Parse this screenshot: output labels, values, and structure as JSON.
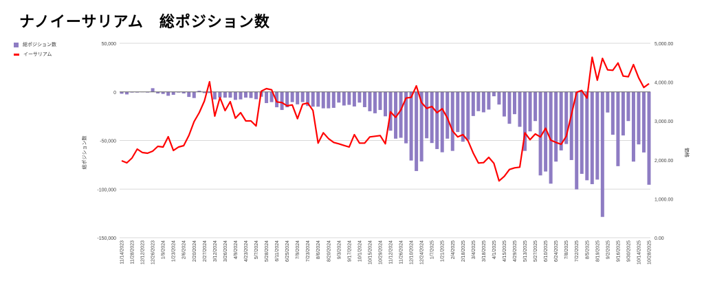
{
  "title": "ナノイーサリアム　総ポジション数",
  "chart_data": {
    "type": "bar+line",
    "title": "ナノイーサリアム　総ポジション数",
    "legend_position": "top-left",
    "legend": [
      "総ポジション数",
      "イーサリアム"
    ],
    "y_left_label": "総ポジション数",
    "y_right_label": "価格",
    "y_left_range": [
      -150000,
      50000
    ],
    "y_right_range": [
      0,
      5000
    ],
    "y_left_ticks": [
      "50,000",
      "0",
      "-50,000",
      "-100,000",
      "-150,000"
    ],
    "y_left_tick_values": [
      50000,
      0,
      -50000,
      -100000,
      -150000
    ],
    "y_right_ticks": [
      "5,000.00",
      "4,000.00",
      "3,000.00",
      "2,000.00",
      "1,000.00",
      "0.00"
    ],
    "y_right_tick_values": [
      5000,
      4000,
      3000,
      2000,
      1000,
      0
    ],
    "grid": true,
    "x_tick_labels": [
      "11/14/2023",
      "11/28/2023",
      "12/12/2023",
      "12/26/2023",
      "1/9/2024",
      "1/23/2024",
      "2/6/2024",
      "2/20/2024",
      "2/27/2024",
      "3/12/2024",
      "3/26/2024",
      "4/9/2024",
      "4/23/2024",
      "5/7/2024",
      "5/28/2024",
      "6/11/2024",
      "6/25/2024",
      "7/9/2024",
      "7/23/2024",
      "8/6/2024",
      "8/20/2024",
      "9/3/2024",
      "9/17/2024",
      "10/1/2024",
      "10/15/2024",
      "10/29/2024",
      "11/12/2024",
      "11/26/2024",
      "12/10/2024",
      "12/24/2024",
      "1/7/2025",
      "1/21/2025",
      "2/4/2025",
      "2/18/2025",
      "3/4/2025",
      "3/18/2025",
      "4/1/2025",
      "4/15/2025",
      "4/29/2025",
      "5/13/2025",
      "5/27/2025",
      "6/10/2025",
      "6/24/2025",
      "7/8/2025",
      "7/22/2025",
      "8/5/2025",
      "8/19/2025",
      "9/2/2025",
      "9/16/2025",
      "9/30/2025",
      "10/14/2025",
      "10/28/2025"
    ],
    "points_per_tick": 2,
    "series": [
      {
        "name": "総ポジション数",
        "type": "bar",
        "color": "#8e7cc3",
        "axis": "left",
        "values": [
          -1900,
          -2600,
          -700,
          -700,
          -200,
          -700,
          3800,
          -1600,
          -2100,
          -4000,
          -3000,
          -700,
          -1600,
          -5200,
          -6300,
          1200,
          -1200,
          -1200,
          -7700,
          -5900,
          -5900,
          -5900,
          -8200,
          -7700,
          -5900,
          -6300,
          -7500,
          -5000,
          -11500,
          -10500,
          -15800,
          -18600,
          -15800,
          -10500,
          -12800,
          -10500,
          -14500,
          -15200,
          -15200,
          -16900,
          -16900,
          -16400,
          -11000,
          -14000,
          -13300,
          -15000,
          -11000,
          -15700,
          -19900,
          -22000,
          -18600,
          -25100,
          -39900,
          -48100,
          -47200,
          -52900,
          -70600,
          -81400,
          -71500,
          -47700,
          -52600,
          -58800,
          -62100,
          -48100,
          -60700,
          -41300,
          -51200,
          -49300,
          -24800,
          -19800,
          -21000,
          -18200,
          -4500,
          -13000,
          -25300,
          -32800,
          -22900,
          -35900,
          -60700,
          -40600,
          -30000,
          -85900,
          -81900,
          -94400,
          -71700,
          -60200,
          -53600,
          -70100,
          -100300,
          -84300,
          -90900,
          -94900,
          -90200,
          -128600,
          -21200,
          -44100,
          -76400,
          -44800,
          -30000,
          -71700,
          -54000,
          -62300,
          -95500
        ]
      },
      {
        "name": "イーサリアム",
        "type": "line",
        "color": "#ff0000",
        "axis": "right",
        "values": [
          1979,
          1926,
          2049,
          2279,
          2191,
          2173,
          2226,
          2350,
          2332,
          2597,
          2244,
          2332,
          2367,
          2633,
          2986,
          3216,
          3516,
          4011,
          3127,
          3604,
          3269,
          3498,
          3074,
          3216,
          3004,
          3004,
          2875,
          3769,
          3834,
          3804,
          3493,
          3475,
          3392,
          3415,
          3062,
          3433,
          3463,
          3274,
          2433,
          2698,
          2549,
          2451,
          2415,
          2373,
          2332,
          2650,
          2433,
          2433,
          2592,
          2610,
          2627,
          2415,
          3238,
          3097,
          3286,
          3592,
          3610,
          3905,
          3475,
          3327,
          3375,
          3216,
          3316,
          3080,
          2744,
          2592,
          2650,
          2491,
          2178,
          1920,
          1931,
          2067,
          1913,
          1461,
          1578,
          1754,
          1797,
          1814,
          2698,
          2521,
          2668,
          2592,
          2815,
          2509,
          2451,
          2403,
          2610,
          3168,
          3740,
          3787,
          3592,
          4641,
          4051,
          4611,
          4316,
          4305,
          4493,
          4157,
          4140,
          4452,
          4111,
          3864,
          3963
        ]
      }
    ]
  }
}
